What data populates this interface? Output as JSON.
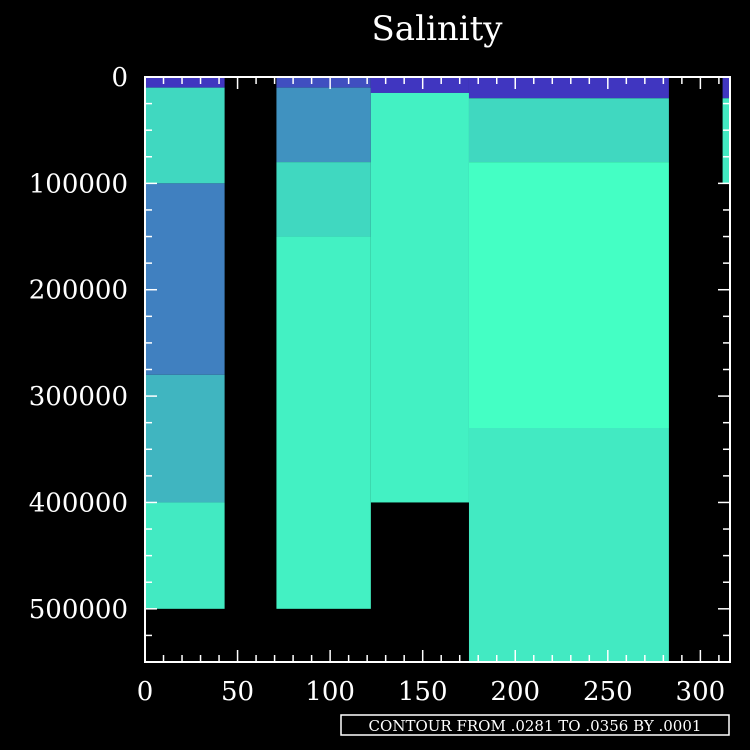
{
  "chart_data": {
    "type": "heatmap",
    "title": "Salinity",
    "xlim": [
      0,
      316
    ],
    "ylim": [
      0,
      550000
    ],
    "y_inverted": true,
    "x_ticks": [
      0,
      50,
      100,
      150,
      200,
      250,
      300
    ],
    "x_tick_labels": [
      "0",
      "50",
      "100",
      "150",
      "200",
      "250",
      "300"
    ],
    "y_ticks": [
      0,
      100000,
      200000,
      300000,
      400000,
      500000
    ],
    "y_tick_labels": [
      "0",
      "100000",
      "200000",
      "300000",
      "400000",
      "500000"
    ],
    "colorbar_note": "CONTOUR FROM .0281 TO .0356 BY .0001",
    "value_range": [
      0.0281,
      0.0356
    ],
    "colors": {
      "background": "#000000",
      "axes": "#ffffff",
      "high_salinity": "#44ffc4",
      "mid_salinity": "#40d8c0",
      "low_salinity": "#4080c0",
      "lowest_salinity": "#4020c0"
    },
    "regions": [
      {
        "x": [
          0,
          43
        ],
        "depth_max": 500000,
        "layers": [
          {
            "depth": [
              0,
              10000
            ],
            "salinity": 0.029
          },
          {
            "depth": [
              10000,
              100000
            ],
            "salinity": 0.0345
          },
          {
            "depth": [
              100000,
              280000
            ],
            "salinity": 0.032
          },
          {
            "depth": [
              280000,
              400000
            ],
            "salinity": 0.0335
          },
          {
            "depth": [
              400000,
              500000
            ],
            "salinity": 0.035
          }
        ]
      },
      {
        "x": [
          71,
          122
        ],
        "depth_max": 500000,
        "layers": [
          {
            "depth": [
              0,
              10000
            ],
            "salinity": 0.03
          },
          {
            "depth": [
              10000,
              80000
            ],
            "salinity": 0.0325
          },
          {
            "depth": [
              80000,
              150000
            ],
            "salinity": 0.0345
          },
          {
            "depth": [
              150000,
              500000
            ],
            "salinity": 0.0352
          }
        ]
      },
      {
        "x": [
          122,
          175
        ],
        "depth_max": 400000,
        "layers": [
          {
            "depth": [
              0,
              15000
            ],
            "salinity": 0.029
          },
          {
            "depth": [
              15000,
              400000
            ],
            "salinity": 0.0352
          }
        ]
      },
      {
        "x": [
          175,
          283
        ],
        "depth_max": 550000,
        "layers": [
          {
            "depth": [
              0,
              20000
            ],
            "salinity": 0.029
          },
          {
            "depth": [
              20000,
              80000
            ],
            "salinity": 0.0345
          },
          {
            "depth": [
              80000,
              330000
            ],
            "salinity": 0.0356
          },
          {
            "depth": [
              330000,
              550000
            ],
            "salinity": 0.035
          }
        ]
      },
      {
        "x": [
          312,
          316
        ],
        "depth_max": 100000,
        "layers": [
          {
            "depth": [
              0,
              20000
            ],
            "salinity": 0.029
          },
          {
            "depth": [
              20000,
              100000
            ],
            "salinity": 0.035
          }
        ]
      }
    ]
  }
}
